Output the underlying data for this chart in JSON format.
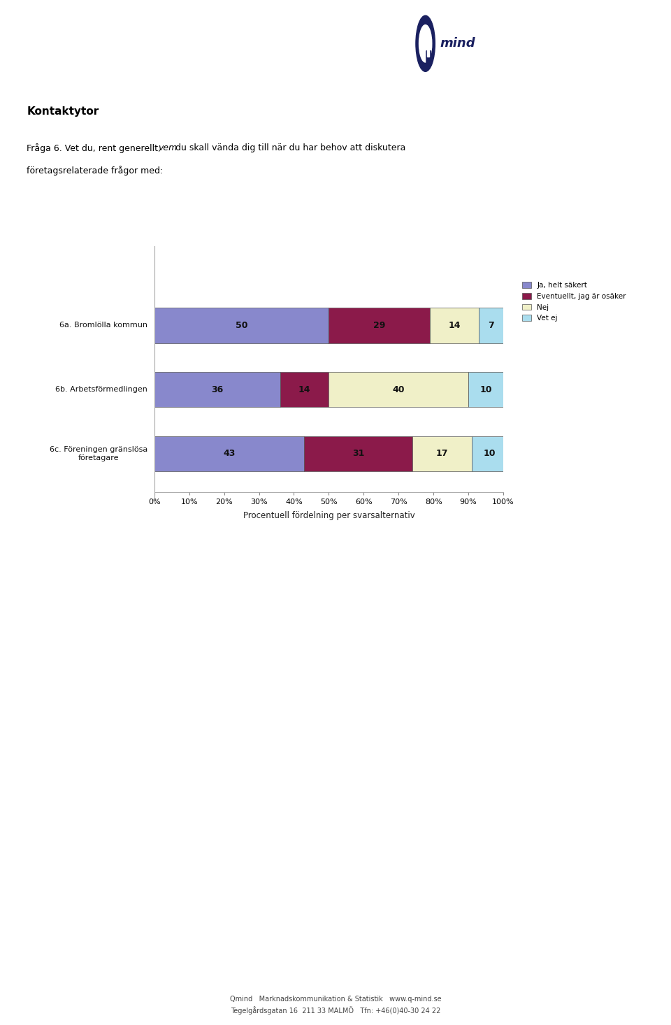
{
  "title_section": "Kontaktytor",
  "question_line1_pre": "Fråga 6. Vet du, rent generellt, ",
  "question_line1_italic": "vem",
  "question_line1_post": " du skall vända dig till när du har behov att diskutera",
  "question_line2": "företagsrelaterade frågor med:",
  "categories": [
    "6a. Bromlölla kommun",
    "6b. Arbetsförmedlingen",
    "6c. Föreningen gränslösa\nföretagare"
  ],
  "series": [
    {
      "name": "Ja, helt säkert",
      "color": "#8888cc",
      "values": [
        50,
        36,
        43
      ]
    },
    {
      "name": "Eventuellt, jag är osäker",
      "color": "#8b1a4a",
      "values": [
        29,
        14,
        31
      ]
    },
    {
      "name": "Nej",
      "color": "#f0f0c8",
      "values": [
        14,
        40,
        17
      ]
    },
    {
      "name": "Vet ej",
      "color": "#aaddee",
      "values": [
        7,
        10,
        10
      ]
    }
  ],
  "xlabel": "Procentuell fördelning per svarsalternativ",
  "xlim": [
    0,
    100
  ],
  "xticks": [
    0,
    10,
    20,
    30,
    40,
    50,
    60,
    70,
    80,
    90,
    100
  ],
  "footer_line1": "Qmind   Marknadskommunikation & Statistik   www.q-mind.se",
  "footer_line2": "Tegelgårdsgatan 16  211 33 MALMÖ   Tfn: +46(0)40-30 24 22",
  "background_color": "#ffffff",
  "bar_height": 0.55,
  "logo_circle_color": "#1a2060",
  "logo_text_color": "#1a2060"
}
